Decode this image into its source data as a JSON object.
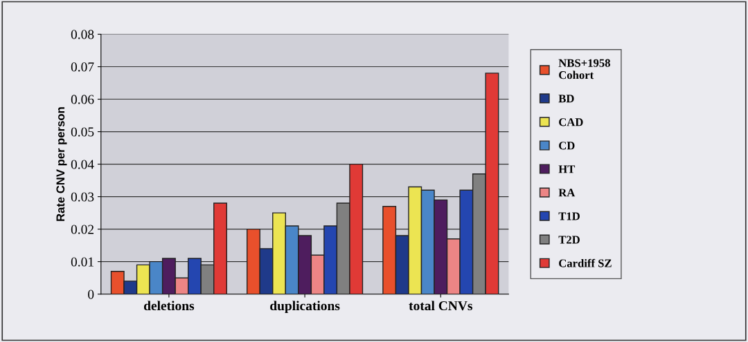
{
  "chart_data": {
    "type": "bar",
    "ylabel": "Rate CNV per person",
    "categories": [
      "deletions",
      "duplications",
      "total CNVs"
    ],
    "series": [
      {
        "name": "NBS+1958\nCohort",
        "color": "#e8502c",
        "values": [
          0.007,
          0.02,
          0.027
        ]
      },
      {
        "name": "BD",
        "color": "#1f3a8a",
        "values": [
          0.004,
          0.014,
          0.018
        ]
      },
      {
        "name": "CAD",
        "color": "#ece452",
        "values": [
          0.009,
          0.025,
          0.033
        ]
      },
      {
        "name": "CD",
        "color": "#4a86c8",
        "values": [
          0.01,
          0.021,
          0.032
        ]
      },
      {
        "name": "HT",
        "color": "#4e1d5e",
        "values": [
          0.011,
          0.018,
          0.029
        ]
      },
      {
        "name": "RA",
        "color": "#ec8585",
        "values": [
          0.005,
          0.012,
          0.017
        ]
      },
      {
        "name": "T1D",
        "color": "#2446b0",
        "values": [
          0.011,
          0.021,
          0.032
        ]
      },
      {
        "name": "T2D",
        "color": "#808080",
        "values": [
          0.009,
          0.028,
          0.037
        ]
      },
      {
        "name": "Cardiff SZ",
        "color": "#e03a36",
        "values": [
          0.028,
          0.04,
          0.068
        ]
      }
    ],
    "ylim": [
      0,
      0.08
    ],
    "yticks": [
      0,
      0.01,
      0.02,
      0.03,
      0.04,
      0.05,
      0.06,
      0.07,
      0.08
    ],
    "grid": "y",
    "legend": "right"
  }
}
